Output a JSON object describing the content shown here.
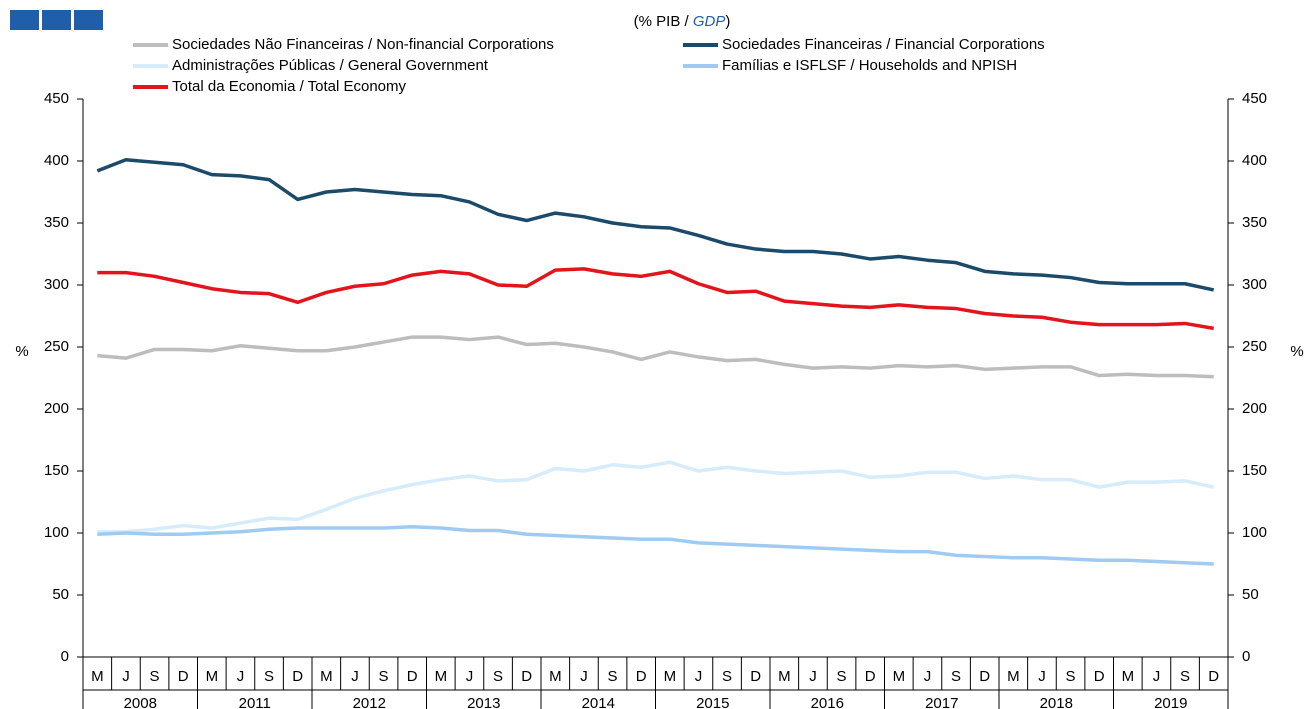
{
  "chart_data": {
    "type": "line",
    "subtitle_parts": [
      "(% PIB / ",
      "GDP",
      ")"
    ],
    "y_label": "%",
    "y2_label": "%",
    "categories": [
      "M",
      "J",
      "S",
      "D",
      "M",
      "J",
      "S",
      "D",
      "M",
      "J",
      "S",
      "D",
      "M",
      "J",
      "S",
      "D",
      "M",
      "J",
      "S",
      "D",
      "M",
      "J",
      "S",
      "D",
      "M",
      "J",
      "S",
      "D",
      "M",
      "J",
      "S",
      "D",
      "M",
      "J",
      "S",
      "D",
      "M",
      "J",
      "S",
      "D"
    ],
    "years": [
      "2008",
      "2011",
      "2012",
      "2013",
      "2014",
      "2015",
      "2016",
      "2017",
      "2018",
      "2019"
    ],
    "ylim": [
      0,
      450
    ],
    "yticks": [
      0,
      50,
      100,
      150,
      200,
      250,
      300,
      350,
      400,
      450
    ],
    "y2lim": [
      0,
      450
    ],
    "y2ticks": [
      0,
      50,
      100,
      150,
      200,
      250,
      300,
      350,
      400,
      450
    ],
    "series": [
      {
        "name": "Sociedades Não Financeiras / Non-financial Corporations",
        "color": "#bdbdbd",
        "values": [
          243,
          241,
          248,
          248,
          247,
          251,
          249,
          247,
          247,
          250,
          254,
          258,
          258,
          256,
          258,
          252,
          253,
          250,
          246,
          240,
          246,
          242,
          239,
          240,
          236,
          233,
          234,
          233,
          235,
          234,
          235,
          232,
          233,
          234,
          234,
          227,
          228,
          227,
          227,
          226
        ]
      },
      {
        "name": "Sociedades Financeiras / Financial Corporations",
        "color": "#1b4a6b",
        "values": [
          392,
          401,
          399,
          397,
          389,
          388,
          385,
          369,
          375,
          377,
          375,
          373,
          372,
          367,
          357,
          352,
          358,
          355,
          350,
          347,
          346,
          340,
          333,
          329,
          327,
          327,
          325,
          321,
          323,
          320,
          318,
          311,
          309,
          308,
          306,
          302,
          301,
          301,
          301,
          296
        ]
      },
      {
        "name": "Administrações Públicas / General Government",
        "color": "#d6ecfa",
        "values": [
          101,
          101,
          103,
          106,
          104,
          108,
          112,
          111,
          119,
          128,
          134,
          139,
          143,
          146,
          142,
          143,
          152,
          150,
          155,
          153,
          157,
          150,
          153,
          150,
          148,
          149,
          150,
          145,
          146,
          149,
          149,
          144,
          146,
          143,
          143,
          137,
          141,
          141,
          142,
          137
        ]
      },
      {
        "name": "Famílias e ISFLSF / Households and NPISH",
        "color": "#9fcbf2",
        "values": [
          99,
          100,
          99,
          99,
          100,
          101,
          103,
          104,
          104,
          104,
          104,
          105,
          104,
          102,
          102,
          99,
          98,
          97,
          96,
          95,
          95,
          92,
          91,
          90,
          89,
          88,
          87,
          86,
          85,
          85,
          82,
          81,
          80,
          80,
          79,
          78,
          78,
          77,
          76,
          75
        ]
      },
      {
        "name": "Total da Economia / Total Economy",
        "color": "#e3141b",
        "values": [
          310,
          310,
          307,
          302,
          297,
          294,
          293,
          286,
          294,
          299,
          301,
          308,
          311,
          309,
          300,
          299,
          312,
          313,
          309,
          307,
          311,
          301,
          294,
          295,
          287,
          285,
          283,
          282,
          284,
          282,
          281,
          277,
          275,
          274,
          270,
          268,
          268,
          268,
          269,
          265
        ]
      }
    ]
  }
}
